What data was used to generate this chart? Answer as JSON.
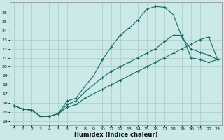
{
  "xlabel": "Humidex (Indice chaleur)",
  "background_color": "#cce9e9",
  "grid_color": "#aacccc",
  "line_color": "#1a6b60",
  "xlim": [
    -0.5,
    23.5
  ],
  "ylim": [
    13.5,
    27.2
  ],
  "xticks": [
    0,
    1,
    2,
    3,
    4,
    5,
    6,
    7,
    8,
    9,
    10,
    11,
    12,
    13,
    14,
    15,
    16,
    17,
    18,
    19,
    20,
    21,
    22,
    23
  ],
  "yticks": [
    14,
    15,
    16,
    17,
    18,
    19,
    20,
    21,
    22,
    23,
    24,
    25,
    26
  ],
  "line1_x": [
    0,
    1,
    2,
    3,
    4,
    5,
    6,
    7,
    8,
    9,
    10,
    11,
    12,
    13,
    14,
    15,
    16,
    17,
    18,
    19,
    20,
    21,
    22,
    23
  ],
  "line1_y": [
    15.7,
    15.3,
    15.2,
    14.5,
    14.5,
    14.8,
    16.2,
    16.5,
    17.8,
    19.0,
    20.8,
    22.2,
    23.5,
    24.3,
    25.2,
    26.4,
    26.7,
    26.6,
    25.8,
    23.2,
    22.0,
    21.6,
    21.3,
    20.8
  ],
  "line2_x": [
    0,
    1,
    2,
    3,
    4,
    5,
    6,
    7,
    8,
    9,
    10,
    11,
    12,
    13,
    14,
    15,
    16,
    17,
    18,
    19,
    20,
    21,
    22,
    23
  ],
  "line2_y": [
    15.7,
    15.3,
    15.2,
    14.5,
    14.5,
    14.8,
    15.8,
    16.2,
    17.2,
    18.0,
    18.8,
    19.5,
    20.0,
    20.5,
    21.0,
    21.5,
    22.0,
    22.8,
    23.5,
    23.5,
    21.0,
    20.8,
    20.5,
    20.8
  ],
  "line3_x": [
    0,
    1,
    2,
    3,
    4,
    5,
    6,
    7,
    8,
    9,
    10,
    11,
    12,
    13,
    14,
    15,
    16,
    17,
    18,
    19,
    20,
    21,
    22,
    23
  ],
  "line3_y": [
    15.7,
    15.3,
    15.2,
    14.5,
    14.5,
    14.8,
    15.5,
    15.8,
    16.5,
    17.0,
    17.5,
    18.0,
    18.5,
    19.0,
    19.5,
    20.0,
    20.5,
    21.0,
    21.5,
    22.0,
    22.5,
    23.0,
    23.3,
    20.8
  ]
}
